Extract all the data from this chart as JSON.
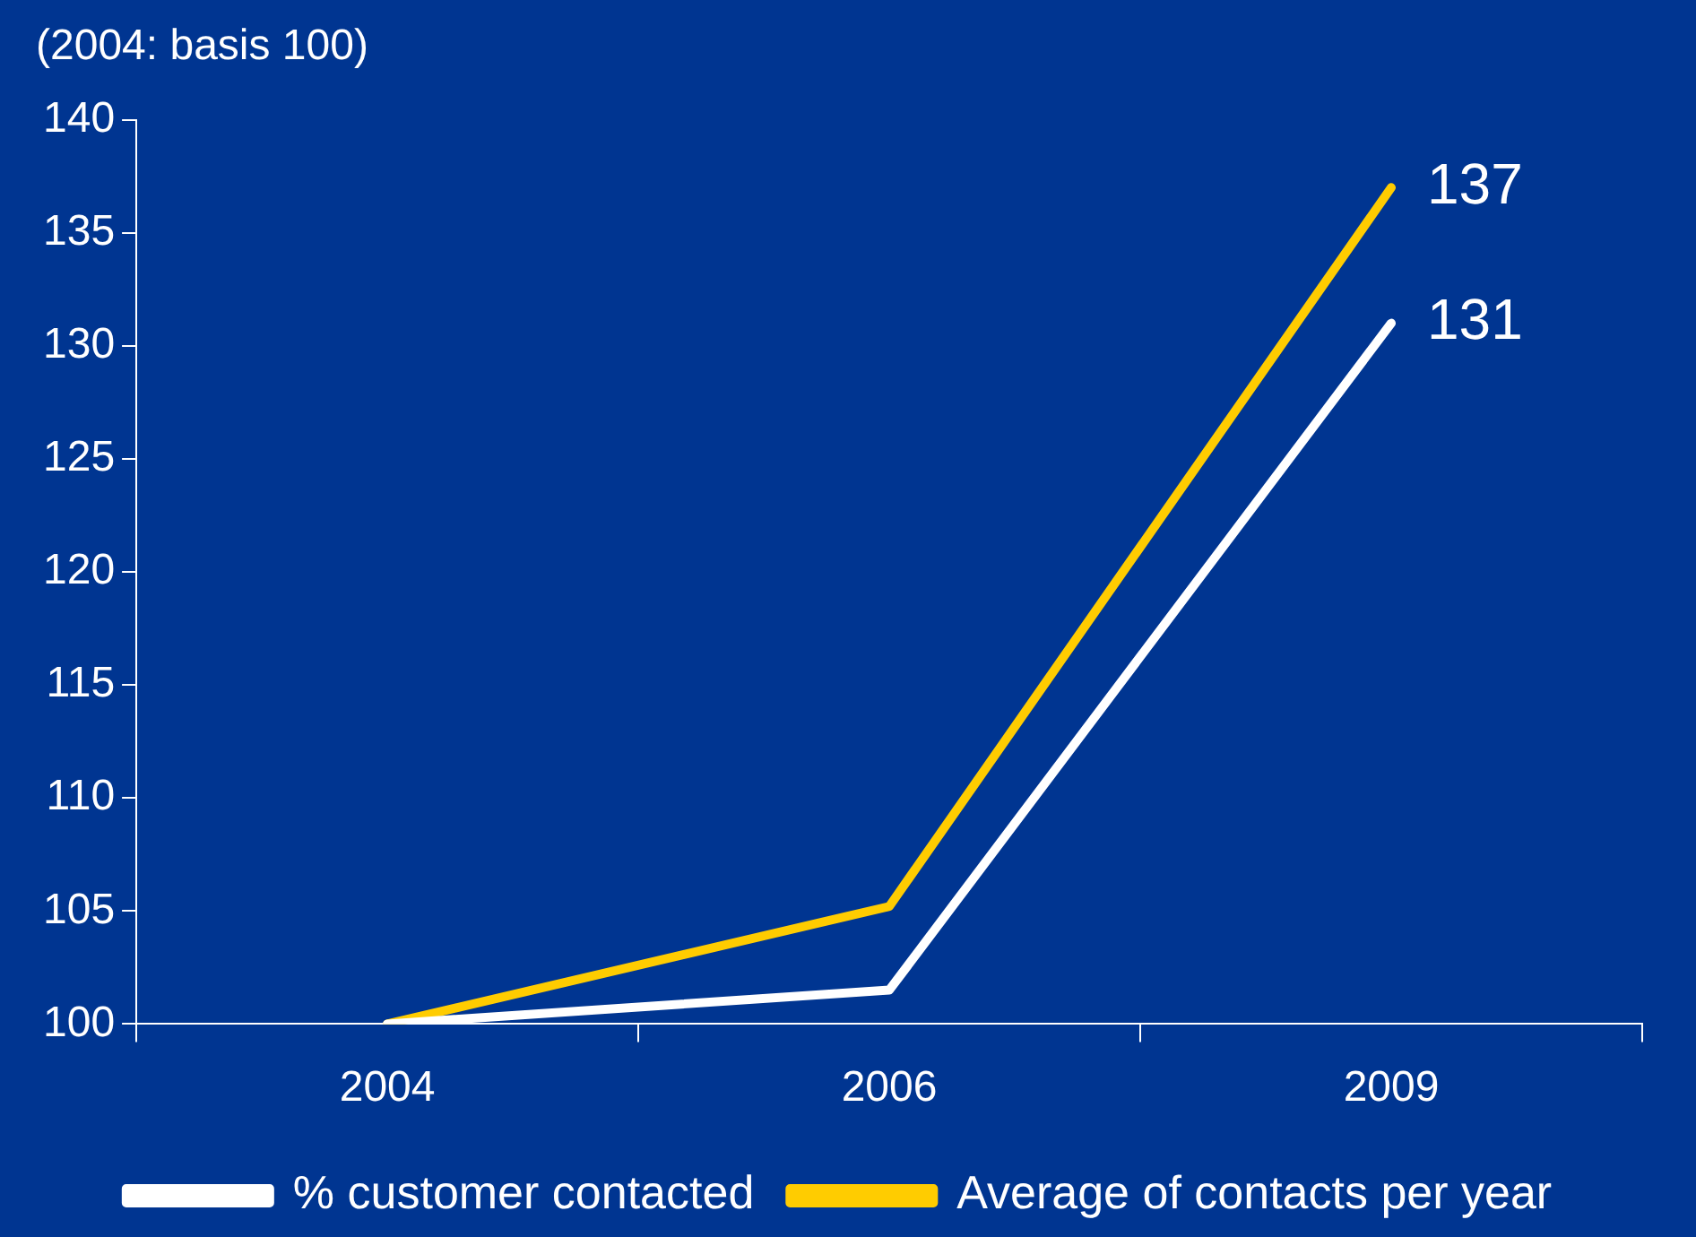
{
  "chart_data": {
    "type": "line",
    "subtitle": "(2004: basis 100)",
    "categories": [
      "2004",
      "2006",
      "2009"
    ],
    "series": [
      {
        "name": "% customer contacted",
        "color": "#ffffff",
        "values": [
          100,
          101.5,
          131
        ],
        "value_labels": [
          null,
          null,
          "131"
        ]
      },
      {
        "name": "Average of contacts per year",
        "color": "#ffcc00",
        "values": [
          100,
          105.2,
          137
        ],
        "value_labels": [
          null,
          null,
          "137"
        ]
      }
    ],
    "ylim": [
      100,
      140
    ],
    "yticks": [
      100,
      105,
      110,
      115,
      120,
      125,
      130,
      135,
      140
    ],
    "grid": false,
    "legend": "bottom",
    "marker": "none",
    "line_style": "solid"
  }
}
